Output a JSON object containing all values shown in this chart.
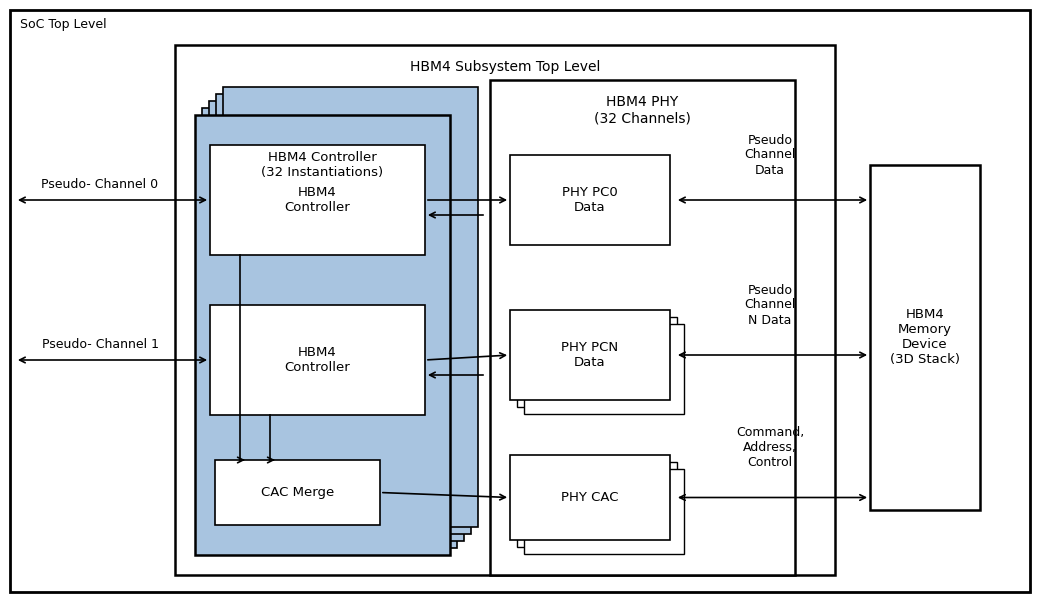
{
  "bg_color": "#ffffff",
  "blue_fill": "#a8c4e0",
  "white_fill": "#ffffff",
  "black": "#000000",
  "fig_w": 10.41,
  "fig_h": 6.04,
  "dpi": 100,
  "labels": {
    "soc": "SoC Top Level",
    "subsystem": "HBM4 Subsystem Top Level",
    "controller_block": "HBM4 Controller\n(32 Instantiations)",
    "phy_block": "HBM4 PHY\n(32 Channels)",
    "hbm_device": "HBM4\nMemory\nDevice\n(3D Stack)",
    "ctrl1": "HBM4\nController",
    "ctrl2": "HBM4\nController",
    "cac_merge": "CAC Merge",
    "phy_pc0": "PHY PC0\nData",
    "phy_pcn": "PHY PCN\nData",
    "phy_cac": "PHY CAC",
    "pseudo_ch0": "Pseudo- Channel 0",
    "pseudo_ch1": "Pseudo- Channel 1",
    "pseudo_ch_data": "Pseudo\nChannel\nData",
    "pseudo_ch_n_data": "Pseudo\nChannel\nN Data",
    "cmd_addr_ctrl": "Command,\nAddress,\nControl"
  }
}
